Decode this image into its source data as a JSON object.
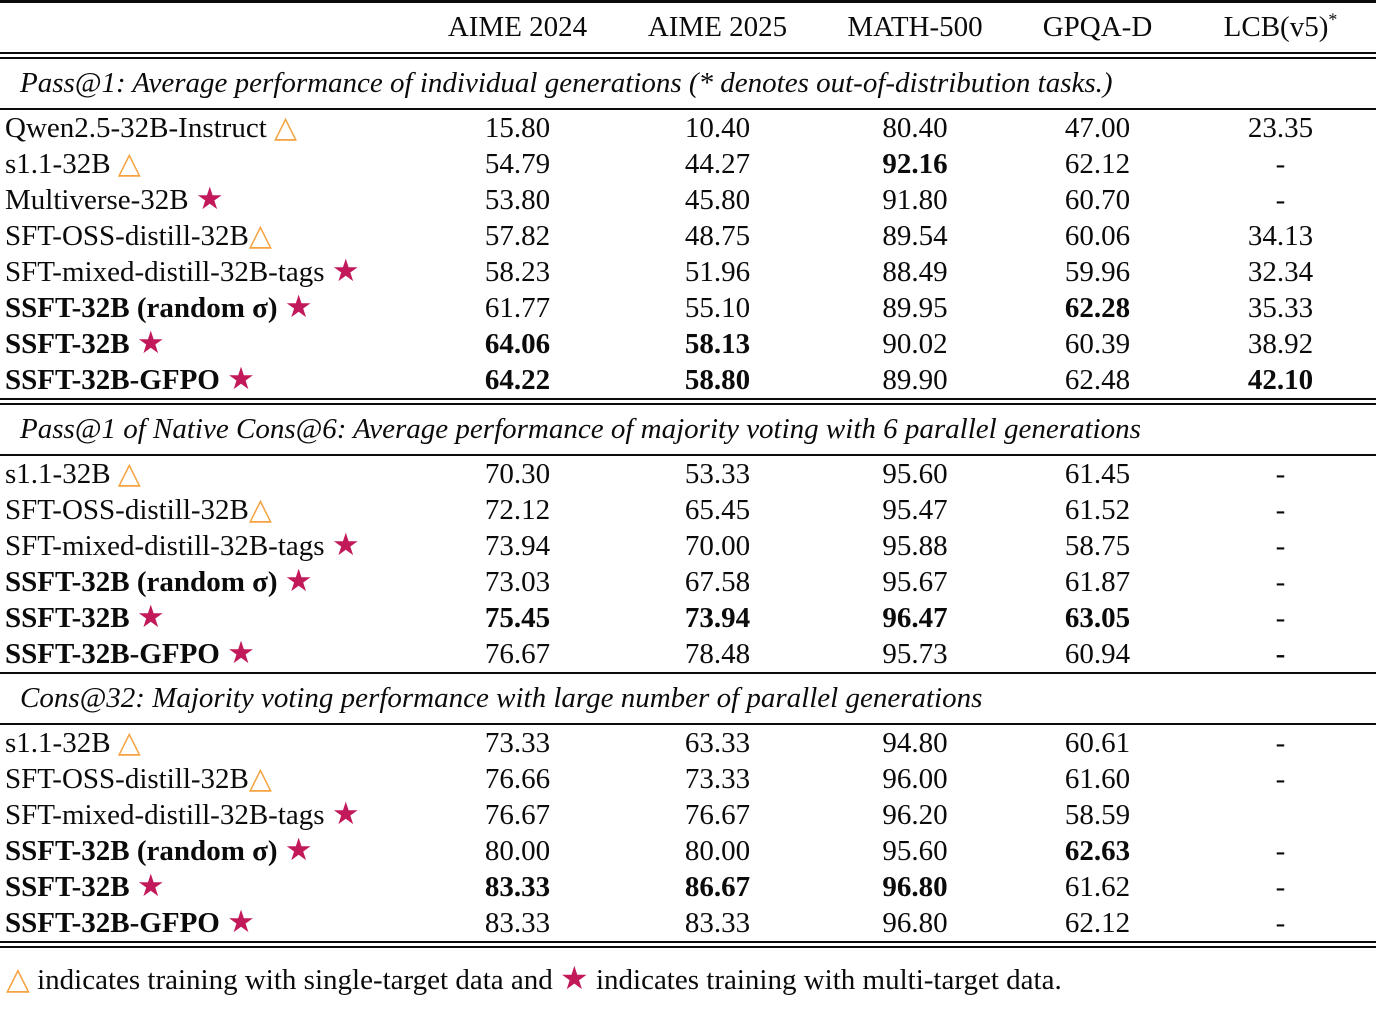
{
  "meta": {
    "star_color": "#C2195B",
    "triangle_color": "#F5A342",
    "star_glyph": "★",
    "triangle_glyph": "△"
  },
  "columns": [
    {
      "label": "AIME 2024",
      "sup": ""
    },
    {
      "label": "AIME 2025",
      "sup": ""
    },
    {
      "label": "MATH-500",
      "sup": ""
    },
    {
      "label": "GPQA-D",
      "sup": ""
    },
    {
      "label": "LCB(v5)",
      "sup": "*"
    }
  ],
  "sections": [
    {
      "header": "Pass@1: Average performance of individual generations (* denotes out-of-distribution tasks.)",
      "rows": [
        {
          "model": "Qwen2.5-32B-Instruct",
          "marker": "triangle",
          "tight": false,
          "bold": false,
          "values": [
            "15.80",
            "10.40",
            "80.40",
            "47.00",
            "23.35"
          ],
          "bold_values": [
            false,
            false,
            false,
            false,
            false
          ]
        },
        {
          "model": "s1.1-32B",
          "marker": "triangle",
          "tight": false,
          "bold": false,
          "values": [
            "54.79",
            "44.27",
            "92.16",
            "62.12",
            "-"
          ],
          "bold_values": [
            false,
            false,
            true,
            false,
            false
          ]
        },
        {
          "model": "Multiverse-32B",
          "marker": "star",
          "tight": false,
          "bold": false,
          "values": [
            "53.80",
            "45.80",
            "91.80",
            "60.70",
            "-"
          ],
          "bold_values": [
            false,
            false,
            false,
            false,
            false
          ]
        },
        {
          "model": "SFT-OSS-distill-32B",
          "marker": "triangle",
          "tight": true,
          "bold": false,
          "values": [
            "57.82",
            "48.75",
            "89.54",
            "60.06",
            "34.13"
          ],
          "bold_values": [
            false,
            false,
            false,
            false,
            false
          ]
        },
        {
          "model": "SFT-mixed-distill-32B-tags",
          "marker": "star",
          "tight": false,
          "bold": false,
          "values": [
            "58.23",
            "51.96",
            "88.49",
            "59.96",
            "32.34"
          ],
          "bold_values": [
            false,
            false,
            false,
            false,
            false
          ]
        },
        {
          "model": "SSFT-32B (random σ)",
          "marker": "star",
          "tight": false,
          "bold": true,
          "values": [
            "61.77",
            "55.10",
            "89.95",
            "62.28",
            "35.33"
          ],
          "bold_values": [
            false,
            false,
            false,
            true,
            false
          ]
        },
        {
          "model": "SSFT-32B",
          "marker": "star",
          "tight": false,
          "bold": true,
          "values": [
            "64.06",
            "58.13",
            "90.02",
            "60.39",
            "38.92"
          ],
          "bold_values": [
            true,
            true,
            false,
            false,
            false
          ]
        },
        {
          "model": "SSFT-32B-GFPO",
          "marker": "star",
          "tight": false,
          "bold": true,
          "values": [
            "64.22",
            "58.80",
            "89.90",
            "62.48",
            "42.10"
          ],
          "bold_values": [
            true,
            true,
            false,
            false,
            true
          ]
        }
      ]
    },
    {
      "header": "Pass@1 of Native Cons@6: Average performance of majority voting with 6 parallel generations",
      "rows": [
        {
          "model": "s1.1-32B",
          "marker": "triangle",
          "tight": false,
          "bold": false,
          "values": [
            "70.30",
            "53.33",
            "95.60",
            "61.45",
            "-"
          ],
          "bold_values": [
            false,
            false,
            false,
            false,
            false
          ]
        },
        {
          "model": "SFT-OSS-distill-32B",
          "marker": "triangle",
          "tight": true,
          "bold": false,
          "values": [
            "72.12",
            "65.45",
            "95.47",
            "61.52",
            "-"
          ],
          "bold_values": [
            false,
            false,
            false,
            false,
            false
          ]
        },
        {
          "model": "SFT-mixed-distill-32B-tags",
          "marker": "star",
          "tight": false,
          "bold": false,
          "values": [
            "73.94",
            "70.00",
            "95.88",
            "58.75",
            "-"
          ],
          "bold_values": [
            false,
            false,
            false,
            false,
            false
          ]
        },
        {
          "model": "SSFT-32B (random σ)",
          "marker": "star",
          "tight": false,
          "bold": true,
          "values": [
            "73.03",
            "67.58",
            "95.67",
            "61.87",
            "-"
          ],
          "bold_values": [
            false,
            false,
            false,
            false,
            false
          ]
        },
        {
          "model": "SSFT-32B",
          "marker": "star",
          "tight": false,
          "bold": true,
          "values": [
            "75.45",
            "73.94",
            "96.47",
            "63.05",
            "-"
          ],
          "bold_values": [
            true,
            true,
            true,
            true,
            false
          ]
        },
        {
          "model": "SSFT-32B-GFPO",
          "marker": "star",
          "tight": false,
          "bold": true,
          "values": [
            "76.67",
            "78.48",
            "95.73",
            "60.94",
            "-"
          ],
          "bold_values": [
            false,
            false,
            false,
            false,
            true
          ]
        }
      ]
    },
    {
      "header": "Cons@32: Majority voting performance with large number of parallel generations",
      "rows": [
        {
          "model": "s1.1-32B",
          "marker": "triangle",
          "tight": false,
          "bold": false,
          "values": [
            "73.33",
            "63.33",
            "94.80",
            "60.61",
            "-"
          ],
          "bold_values": [
            false,
            false,
            false,
            false,
            false
          ]
        },
        {
          "model": "SFT-OSS-distill-32B",
          "marker": "triangle",
          "tight": true,
          "bold": false,
          "values": [
            "76.66",
            "73.33",
            "96.00",
            "61.60",
            "-"
          ],
          "bold_values": [
            false,
            false,
            false,
            false,
            false
          ]
        },
        {
          "model": "SFT-mixed-distill-32B-tags",
          "marker": "star",
          "tight": false,
          "bold": false,
          "values": [
            "76.67",
            "76.67",
            "96.20",
            "58.59",
            ""
          ],
          "bold_values": [
            false,
            false,
            false,
            false,
            false
          ]
        },
        {
          "model": "SSFT-32B (random σ)",
          "marker": "star",
          "tight": false,
          "bold": true,
          "values": [
            "80.00",
            "80.00",
            "95.60",
            "62.63",
            "-"
          ],
          "bold_values": [
            false,
            false,
            false,
            true,
            false
          ]
        },
        {
          "model": "SSFT-32B",
          "marker": "star",
          "tight": false,
          "bold": true,
          "values": [
            "83.33",
            "86.67",
            "96.80",
            "61.62",
            "-"
          ],
          "bold_values": [
            true,
            true,
            true,
            false,
            false
          ]
        },
        {
          "model": "SSFT-32B-GFPO",
          "marker": "star",
          "tight": false,
          "bold": true,
          "values": [
            "83.33",
            "83.33",
            "96.80",
            "62.12",
            "-"
          ],
          "bold_values": [
            false,
            false,
            false,
            false,
            false
          ]
        }
      ]
    }
  ],
  "footnote": {
    "part1": "indicates training with single-target data and",
    "part2": "indicates training with multi-target data."
  }
}
